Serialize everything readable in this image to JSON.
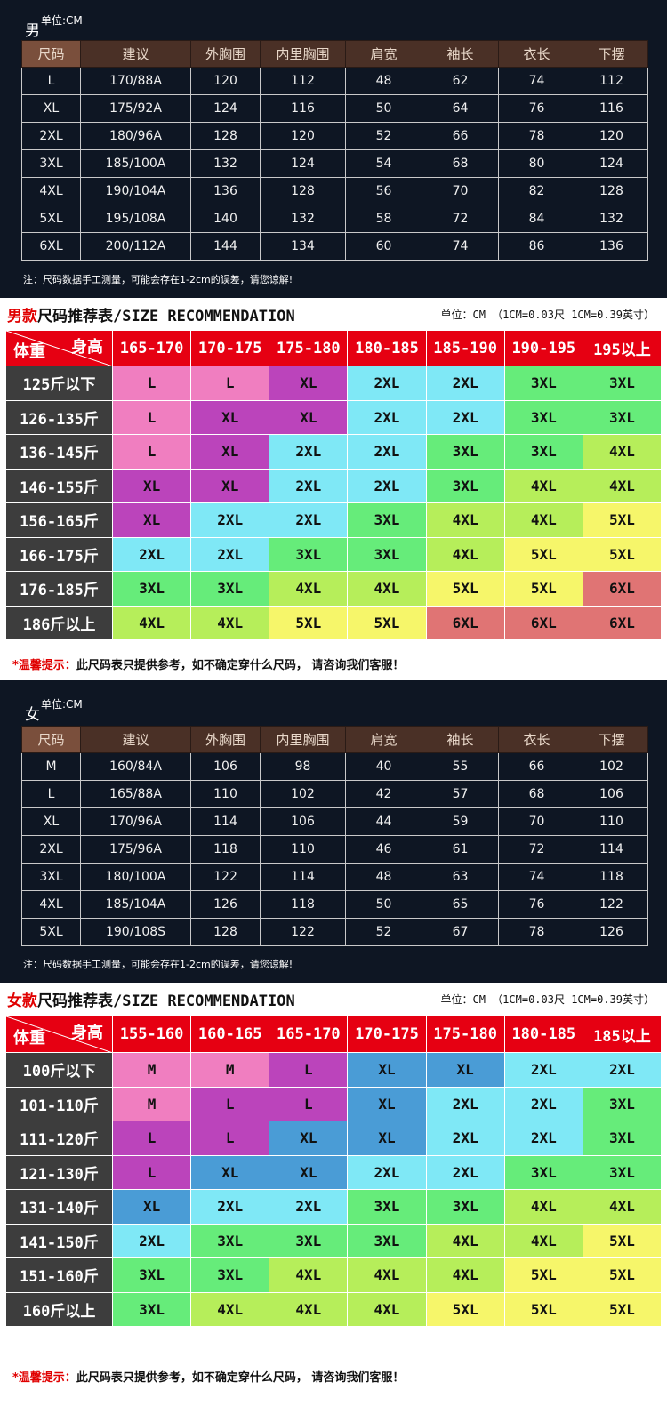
{
  "men": {
    "gender": "男",
    "unit": "单位:CM",
    "headers": [
      "尺码",
      "建议",
      "外胸围",
      "内里胸围",
      "肩宽",
      "袖长",
      "衣长",
      "下摆"
    ],
    "rows": [
      [
        "L",
        "170/88A",
        "120",
        "112",
        "48",
        "62",
        "74",
        "112"
      ],
      [
        "XL",
        "175/92A",
        "124",
        "116",
        "50",
        "64",
        "76",
        "116"
      ],
      [
        "2XL",
        "180/96A",
        "128",
        "120",
        "52",
        "66",
        "78",
        "120"
      ],
      [
        "3XL",
        "185/100A",
        "132",
        "124",
        "54",
        "68",
        "80",
        "124"
      ],
      [
        "4XL",
        "190/104A",
        "136",
        "128",
        "56",
        "70",
        "82",
        "128"
      ],
      [
        "5XL",
        "195/108A",
        "140",
        "132",
        "58",
        "72",
        "84",
        "132"
      ],
      [
        "6XL",
        "200/112A",
        "144",
        "134",
        "60",
        "74",
        "86",
        "136"
      ]
    ],
    "note": "注：尺码数据手工测量，可能会存在1-2cm的误差，请您谅解!",
    "rec_title_red": "男款",
    "rec_title": "尺码推荐表/SIZE RECOMMENDATION",
    "rec_unit": "单位：CM （1CM=0.03尺 1CM=0.39英寸）",
    "corner_height": "身高",
    "corner_weight": "体重",
    "heights": [
      "165-170",
      "170-175",
      "175-180",
      "180-185",
      "185-190",
      "190-195",
      "195以上"
    ],
    "weights": [
      "125斤以下",
      "126-135斤",
      "136-145斤",
      "146-155斤",
      "156-165斤",
      "166-175斤",
      "176-185斤",
      "186斤以上"
    ],
    "grid": [
      [
        "L",
        "L",
        "XL",
        "2XL",
        "2XL",
        "3XL",
        "3XL"
      ],
      [
        "L",
        "XL",
        "XL",
        "2XL",
        "2XL",
        "3XL",
        "3XL"
      ],
      [
        "L",
        "XL",
        "2XL",
        "2XL",
        "3XL",
        "3XL",
        "4XL"
      ],
      [
        "XL",
        "XL",
        "2XL",
        "2XL",
        "3XL",
        "4XL",
        "4XL"
      ],
      [
        "XL",
        "2XL",
        "2XL",
        "3XL",
        "4XL",
        "4XL",
        "5XL"
      ],
      [
        "2XL",
        "2XL",
        "3XL",
        "3XL",
        "4XL",
        "5XL",
        "5XL"
      ],
      [
        "3XL",
        "3XL",
        "4XL",
        "4XL",
        "5XL",
        "5XL",
        "6XL"
      ],
      [
        "4XL",
        "4XL",
        "5XL",
        "5XL",
        "6XL",
        "6XL",
        "6XL"
      ]
    ],
    "tip_red": "*温馨提示：",
    "tip": "此尺码表只提供参考，如不确定穿什么尺码， 请咨询我们客服！"
  },
  "women": {
    "gender": "女",
    "unit": "单位:CM",
    "headers": [
      "尺码",
      "建议",
      "外胸围",
      "内里胸围",
      "肩宽",
      "袖长",
      "衣长",
      "下摆"
    ],
    "rows": [
      [
        "M",
        "160/84A",
        "106",
        "98",
        "40",
        "55",
        "66",
        "102"
      ],
      [
        "L",
        "165/88A",
        "110",
        "102",
        "42",
        "57",
        "68",
        "106"
      ],
      [
        "XL",
        "170/96A",
        "114",
        "106",
        "44",
        "59",
        "70",
        "110"
      ],
      [
        "2XL",
        "175/96A",
        "118",
        "110",
        "46",
        "61",
        "72",
        "114"
      ],
      [
        "3XL",
        "180/100A",
        "122",
        "114",
        "48",
        "63",
        "74",
        "118"
      ],
      [
        "4XL",
        "185/104A",
        "126",
        "118",
        "50",
        "65",
        "76",
        "122"
      ],
      [
        "5XL",
        "190/108S",
        "128",
        "122",
        "52",
        "67",
        "78",
        "126"
      ]
    ],
    "note": "注：尺码数据手工测量，可能会存在1-2cm的误差，请您谅解!",
    "rec_title_red": "女款",
    "rec_title": "尺码推荐表/SIZE RECOMMENDATION",
    "rec_unit": "单位：CM （1CM=0.03尺 1CM=0.39英寸）",
    "corner_height": "身高",
    "corner_weight": "体重",
    "heights": [
      "155-160",
      "160-165",
      "165-170",
      "170-175",
      "175-180",
      "180-185",
      "185以上"
    ],
    "weights": [
      "100斤以下",
      "101-110斤",
      "111-120斤",
      "121-130斤",
      "131-140斤",
      "141-150斤",
      "151-160斤",
      "160斤以上"
    ],
    "grid": [
      [
        "M",
        "M",
        "L",
        "XL",
        "XL",
        "2XL",
        "2XL"
      ],
      [
        "M",
        "L",
        "L",
        "XL",
        "2XL",
        "2XL",
        "3XL"
      ],
      [
        "L",
        "L",
        "XL",
        "XL",
        "2XL",
        "2XL",
        "3XL"
      ],
      [
        "L",
        "XL",
        "XL",
        "2XL",
        "2XL",
        "3XL",
        "3XL"
      ],
      [
        "XL",
        "2XL",
        "2XL",
        "3XL",
        "3XL",
        "4XL",
        "4XL"
      ],
      [
        "2XL",
        "3XL",
        "3XL",
        "3XL",
        "4XL",
        "4XL",
        "5XL"
      ],
      [
        "3XL",
        "3XL",
        "4XL",
        "4XL",
        "4XL",
        "5XL",
        "5XL"
      ],
      [
        "3XL",
        "4XL",
        "4XL",
        "4XL",
        "5XL",
        "5XL",
        "5XL"
      ]
    ],
    "tip_red": "*温馨提示：",
    "tip": "此尺码表只提供参考，如不确定穿什么尺码， 请咨询我们客服！"
  },
  "men_size_colors": {
    "L": "#f07ec0",
    "XL": "#bb44bb",
    "2XL": "#7fe8f6",
    "3XL": "#66ec7a",
    "4XL": "#b6ee5a",
    "5XL": "#f6f66a",
    "6XL": "#e07474"
  },
  "women_size_colors": {
    "M": "#f07ec0",
    "L": "#bb44bb",
    "XL": "#4a9cd6",
    "2XL": "#7fe8f6",
    "3XL": "#66ec7a",
    "4XL": "#b6ee5a",
    "5XL": "#f6f66a"
  }
}
